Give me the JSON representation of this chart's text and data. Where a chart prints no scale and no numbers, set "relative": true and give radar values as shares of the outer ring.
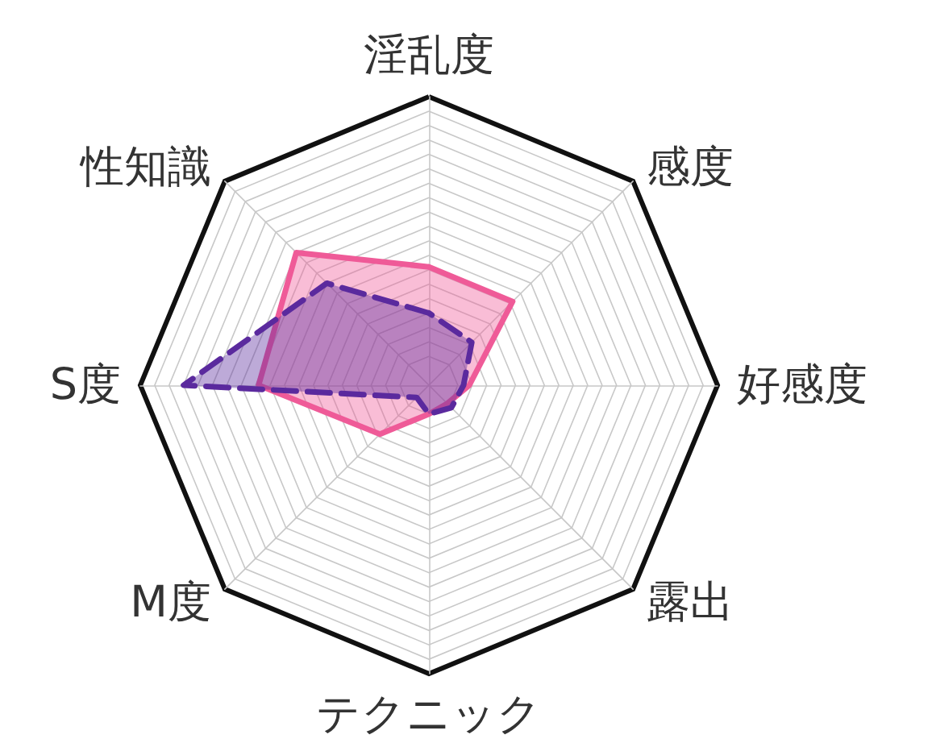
{
  "chart_data": {
    "type": "radar",
    "relative": true,
    "marker": "none",
    "categories": [
      "淫乱度",
      "感度",
      "好感度",
      "露出",
      "テクニック",
      "M度",
      "S度",
      "性知識"
    ],
    "series": [
      {
        "color": "#ef5b98",
        "line_style": "solid",
        "values": [
          0.41,
          0.41,
          0.14,
          0.09,
          0.1,
          0.24,
          0.59,
          0.65
        ]
      },
      {
        "color": "#5b2a9e",
        "line_style": "dashed",
        "values": [
          0.25,
          0.21,
          0.12,
          0.11,
          0.1,
          0.06,
          0.85,
          0.5
        ]
      }
    ]
  }
}
